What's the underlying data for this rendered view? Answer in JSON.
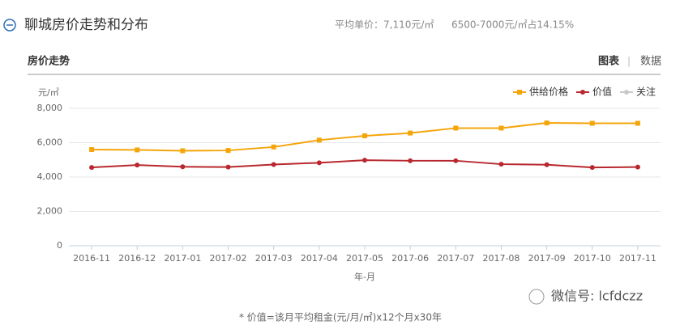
{
  "header": {
    "title": "聊城房价走势和分布",
    "avg_price": "平均单价：7,110元/㎡",
    "share": "6500-7000元/㎡占14.15%"
  },
  "tabs": {
    "section": "房价走势",
    "chart_tab": "图表",
    "separator": "|",
    "data_tab": "数据"
  },
  "footnote": "* 价值=该月平均租金(元/月/㎡)x12个月x30年",
  "watermark": "微信号: lcfdczz",
  "chart_data": {
    "type": "line",
    "y_unit": "元/㎡",
    "x_label": "年-月",
    "categories": [
      "2016-11",
      "2016-12",
      "2017-01",
      "2017-02",
      "2017-03",
      "2017-04",
      "2017-05",
      "2017-06",
      "2017-07",
      "2017-08",
      "2017-09",
      "2017-10",
      "2017-11"
    ],
    "series": [
      {
        "name": "供给价格",
        "color": "#f5a50a",
        "marker": "square",
        "values": [
          5600,
          5580,
          5530,
          5550,
          5750,
          6150,
          6400,
          6560,
          6850,
          6850,
          7150,
          7130,
          7130
        ]
      },
      {
        "name": "价值",
        "color": "#b8282e",
        "marker": "circle",
        "values": [
          4560,
          4700,
          4600,
          4580,
          4730,
          4830,
          4980,
          4950,
          4950,
          4750,
          4720,
          4560,
          4580
        ]
      },
      {
        "name": "关注",
        "color": "#c8c8c8",
        "marker": "circle",
        "values": [
          null,
          null,
          null,
          null,
          null,
          null,
          null,
          null,
          null,
          null,
          null,
          null,
          null
        ]
      }
    ],
    "ylim": [
      0,
      8000
    ],
    "yticks": [
      0,
      {
        "value": 2000,
        "label": "2,000"
      },
      {
        "value": 4000,
        "label": "4,000"
      },
      {
        "value": 6000,
        "label": "6,000"
      },
      {
        "value": 8000,
        "label": "8,000"
      }
    ],
    "grid": true,
    "legend": "top-right"
  }
}
